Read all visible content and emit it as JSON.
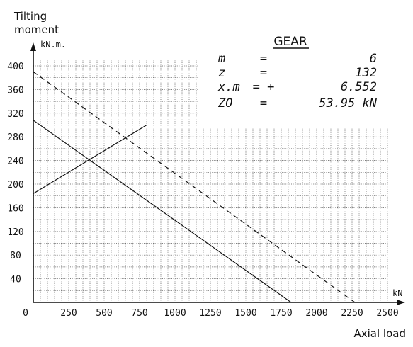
{
  "chart_data": {
    "type": "line",
    "title": "",
    "ylabel": "Tilting moment",
    "ylabel_unit": "kN.m.",
    "xlabel": "Axial load",
    "xlabel_unit": "kN",
    "xlim": [
      0,
      2500
    ],
    "ylim": [
      0,
      400
    ],
    "x_ticks": [
      0,
      250,
      500,
      750,
      1000,
      1250,
      1500,
      1750,
      2000,
      2250,
      2500
    ],
    "y_ticks": [
      40,
      80,
      120,
      160,
      200,
      240,
      280,
      320,
      360,
      400
    ],
    "grid": true,
    "series": [
      {
        "style": "solid",
        "points": [
          [
            0,
            308
          ],
          [
            1820,
            0
          ]
        ]
      },
      {
        "style": "dashed",
        "points": [
          [
            0,
            390
          ],
          [
            2270,
            0
          ]
        ]
      },
      {
        "style": "solid",
        "points": [
          [
            0,
            184
          ],
          [
            800,
            300
          ]
        ]
      }
    ],
    "gear": {
      "title": "GEAR",
      "rows": [
        {
          "name": "m",
          "sign": "=",
          "value": "6"
        },
        {
          "name": "z",
          "sign": "=",
          "value": "132"
        },
        {
          "name": "x.m",
          "sign": "= +",
          "value": "6.552"
        },
        {
          "name": "ZO",
          "sign": "=",
          "value": "53.95 kN"
        }
      ]
    }
  }
}
